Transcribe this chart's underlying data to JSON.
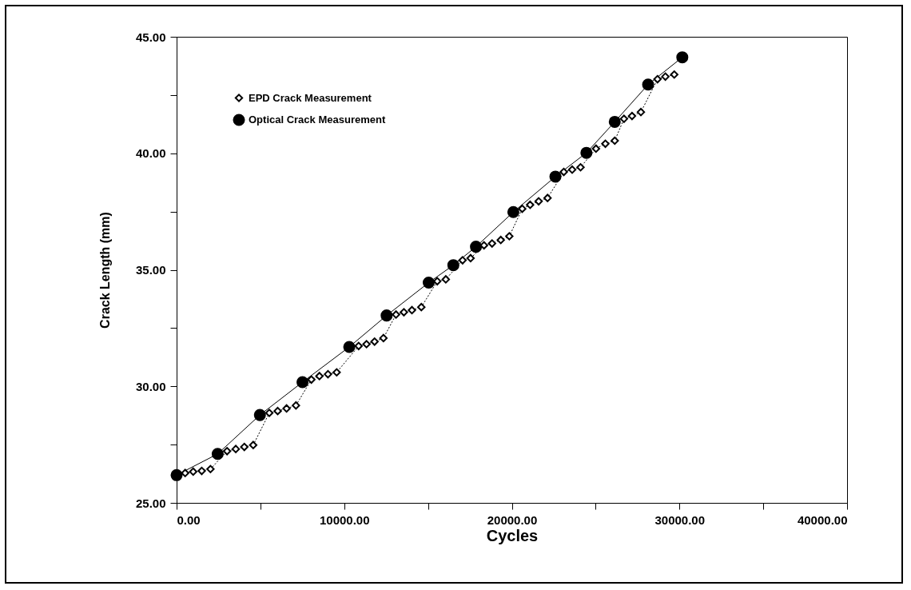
{
  "chart_data": {
    "type": "line",
    "xlabel": "Cycles",
    "ylabel": "Crack Length (mm)",
    "xlim": [
      0,
      40000
    ],
    "xticks": [
      {
        "value": 0,
        "label": "0.00"
      },
      {
        "value": 5000,
        "label": null
      },
      {
        "value": 10000,
        "label": "10000.00"
      },
      {
        "value": 15000,
        "label": null
      },
      {
        "value": 20000,
        "label": "20000.00"
      },
      {
        "value": 25000,
        "label": null
      },
      {
        "value": 30000,
        "label": "30000.00"
      },
      {
        "value": 35000,
        "label": null
      },
      {
        "value": 40000,
        "label": "40000.00"
      }
    ],
    "ylim": [
      25,
      45
    ],
    "yticks": [
      {
        "value": 25,
        "label": "25.00"
      },
      {
        "value": 27.5,
        "label": null
      },
      {
        "value": 30,
        "label": "30.00"
      },
      {
        "value": 32.5,
        "label": null
      },
      {
        "value": 35,
        "label": "35.00"
      },
      {
        "value": 37.5,
        "label": null
      },
      {
        "value": 40,
        "label": "40.00"
      },
      {
        "value": 42.5,
        "label": null
      },
      {
        "value": 45,
        "label": "45.00"
      }
    ],
    "grid": false,
    "legend": "top left",
    "series": [
      {
        "name": "EPD Crack Measurement",
        "color": "#000000",
        "marker": "diamond",
        "line_style": "dotted",
        "x": [
          510,
          990,
          1500,
          2020,
          3010,
          3530,
          4040,
          4570,
          5530,
          6030,
          6560,
          7120,
          8040,
          8520,
          9030,
          9550,
          10860,
          11330,
          11810,
          12340,
          13090,
          13560,
          14040,
          14600,
          15550,
          16060,
          17060,
          17540,
          18340,
          18820,
          19340,
          19850,
          20620,
          21090,
          21600,
          22130,
          23100,
          23600,
          24100,
          25020,
          25580,
          26140,
          26690,
          27170,
          27700,
          28690,
          29160,
          29690
        ],
        "values": [
          26.28,
          26.34,
          26.37,
          26.45,
          27.22,
          27.31,
          27.4,
          27.48,
          28.86,
          28.94,
          29.05,
          29.18,
          30.29,
          30.44,
          30.52,
          30.6,
          31.73,
          31.81,
          31.92,
          32.07,
          33.08,
          33.18,
          33.27,
          33.4,
          34.51,
          34.59,
          35.41,
          35.5,
          36.05,
          36.13,
          36.28,
          36.44,
          37.62,
          37.79,
          37.94,
          38.08,
          39.2,
          39.3,
          39.4,
          40.2,
          40.41,
          40.54,
          41.48,
          41.6,
          41.77,
          43.18,
          43.29,
          43.38
        ]
      },
      {
        "name": "Optical Crack Measurement",
        "color": "#000000",
        "marker": "circle",
        "line_style": "solid",
        "x": [
          0,
          2450,
          4970,
          7510,
          10300,
          12530,
          15040,
          16510,
          17860,
          20090,
          22600,
          24450,
          26140,
          28130,
          30170
        ],
        "values": [
          26.19,
          27.1,
          28.77,
          30.18,
          31.69,
          33.04,
          34.45,
          35.2,
          35.99,
          37.48,
          39.0,
          40.02,
          41.35,
          42.95,
          44.12
        ]
      }
    ]
  }
}
